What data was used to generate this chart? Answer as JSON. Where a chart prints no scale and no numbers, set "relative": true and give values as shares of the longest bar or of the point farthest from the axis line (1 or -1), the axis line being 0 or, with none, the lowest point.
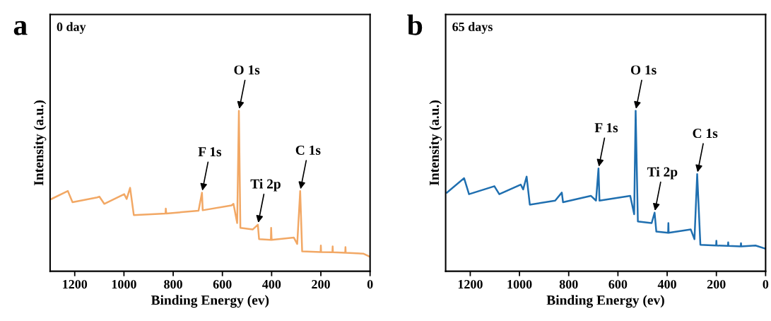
{
  "chart_data": [
    {
      "type": "line",
      "title": "a",
      "xlabel": "Binding Energy (ev)",
      "ylabel": "Intensity (a.u.)",
      "relative": true,
      "xlim": [
        1300,
        0
      ],
      "xticks": [
        1200,
        1000,
        800,
        600,
        400,
        200,
        0
      ],
      "tick_labels": "x",
      "x": [
        1295,
        1228,
        1209,
        1109,
        1100,
        1080,
        999,
        989,
        975,
        960,
        831,
        830,
        828,
        697,
        683,
        680,
        563,
        555,
        540,
        533,
        527,
        477,
        456,
        451,
        403,
        402,
        400,
        310,
        296,
        284,
        276,
        201,
        200,
        199,
        153,
        152,
        151,
        101,
        100,
        99,
        28,
        0
      ],
      "series": [
        {
          "color": "#f2a865",
          "values": [
            0.45,
            0.5,
            0.43,
            0.46,
            0.465,
            0.42,
            0.48,
            0.45,
            0.52,
            0.35,
            0.36,
            0.39,
            0.36,
            0.377,
            0.49,
            0.38,
            0.41,
            0.42,
            0.3,
            1.0,
            0.27,
            0.26,
            0.29,
            0.2,
            0.195,
            0.27,
            0.195,
            0.21,
            0.17,
            0.5,
            0.124,
            0.12,
            0.16,
            0.12,
            0.118,
            0.155,
            0.118,
            0.115,
            0.15,
            0.115,
            0.11,
            0.09
          ]
        }
      ],
      "annotations": [
        "0 day",
        {
          "text": "F 1s",
          "x": 683,
          "y": 0.49
        },
        {
          "text": "O 1s",
          "x": 533,
          "y": 1.0
        },
        {
          "text": "Ti 2p",
          "x": 456,
          "y": 0.29
        },
        {
          "text": "C 1s",
          "x": 284,
          "y": 0.5
        }
      ]
    },
    {
      "type": "line",
      "title": "b",
      "xlabel": "Binding Energy (ev)",
      "ylabel": "Intensity (a.u.)",
      "relative": true,
      "xlim": [
        1300,
        0
      ],
      "xticks": [
        1200,
        1000,
        800,
        600,
        400,
        200,
        0
      ],
      "tick_labels": "x",
      "x": [
        1295,
        1225,
        1205,
        1102,
        1082,
        995,
        985,
        971,
        958,
        855,
        828,
        823,
        710,
        689,
        679,
        675,
        550,
        534,
        528,
        519,
        463,
        451,
        444,
        396,
        395,
        394,
        304,
        289,
        278,
        265,
        201,
        200,
        199,
        153,
        152,
        151,
        101,
        100,
        99,
        41,
        0
      ],
      "series": [
        {
          "color": "#1f6fb0",
          "values": [
            0.49,
            0.58,
            0.48,
            0.53,
            0.48,
            0.54,
            0.51,
            0.59,
            0.415,
            0.44,
            0.49,
            0.43,
            0.47,
            0.44,
            0.64,
            0.44,
            0.47,
            0.355,
            1.0,
            0.31,
            0.3,
            0.365,
            0.247,
            0.24,
            0.3,
            0.24,
            0.26,
            0.2,
            0.605,
            0.165,
            0.16,
            0.19,
            0.16,
            0.158,
            0.18,
            0.158,
            0.155,
            0.175,
            0.155,
            0.16,
            0.14
          ]
        }
      ],
      "annotations": [
        "65 days",
        {
          "text": "F 1s",
          "x": 679,
          "y": 0.64
        },
        {
          "text": "O 1s",
          "x": 528,
          "y": 1.0
        },
        {
          "text": "Ti 2p",
          "x": 451,
          "y": 0.365
        },
        {
          "text": "C 1s",
          "x": 278,
          "y": 0.605
        }
      ]
    }
  ]
}
